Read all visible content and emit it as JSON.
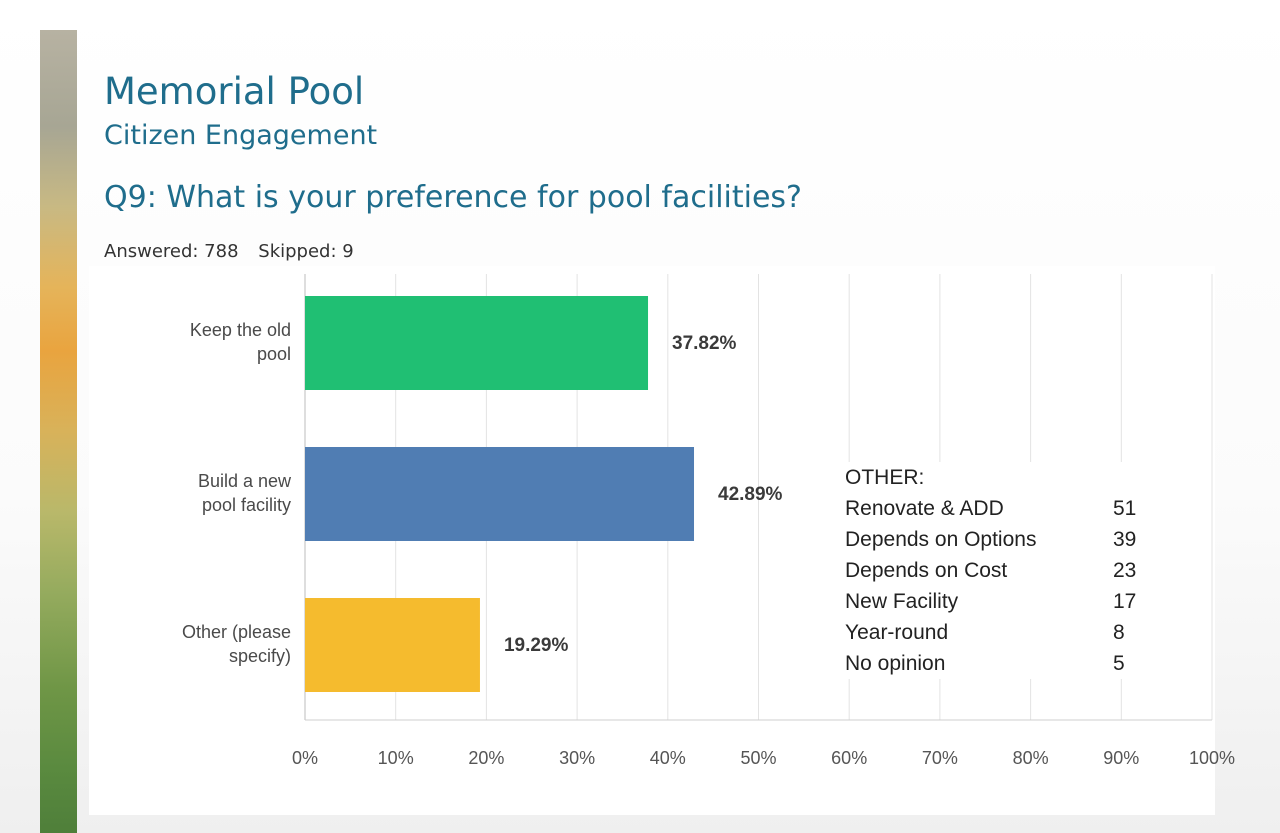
{
  "slide": {
    "title": "Memorial Pool",
    "subtitle": "Citizen Engagement",
    "question": "Q9: What is your preference for pool facilities?",
    "answered": "Answered: 788",
    "skipped": "Skipped: 9"
  },
  "colors": {
    "title": "#1f6d8c",
    "bar_keep": "#20bf73",
    "bar_build": "#507db3",
    "bar_other": "#f5bb2e"
  },
  "chart_data": {
    "type": "bar",
    "orientation": "horizontal",
    "categories": [
      [
        "Keep the old",
        "pool"
      ],
      [
        "Build a new",
        "pool facility"
      ],
      [
        "Other (please",
        "specify)"
      ]
    ],
    "values": [
      37.82,
      42.89,
      19.29
    ],
    "value_labels": [
      "37.82%",
      "42.89%",
      "19.29%"
    ],
    "colors": [
      "#20bf73",
      "#507db3",
      "#f5bb2e"
    ],
    "xlim": [
      0,
      100
    ],
    "xticks": [
      "0%",
      "10%",
      "20%",
      "30%",
      "40%",
      "50%",
      "60%",
      "70%",
      "80%",
      "90%",
      "100%"
    ],
    "grid": true
  },
  "other_breakdown": {
    "title": "OTHER:",
    "items": [
      {
        "label": "Renovate & ADD",
        "count": "51"
      },
      {
        "label": "Depends on Options",
        "count": "39"
      },
      {
        "label": "Depends on Cost",
        "count": "23"
      },
      {
        "label": "New Facility",
        "count": "17"
      },
      {
        "label": "Year-round",
        "count": "8"
      },
      {
        "label": "No opinion",
        "count": "5"
      }
    ]
  }
}
